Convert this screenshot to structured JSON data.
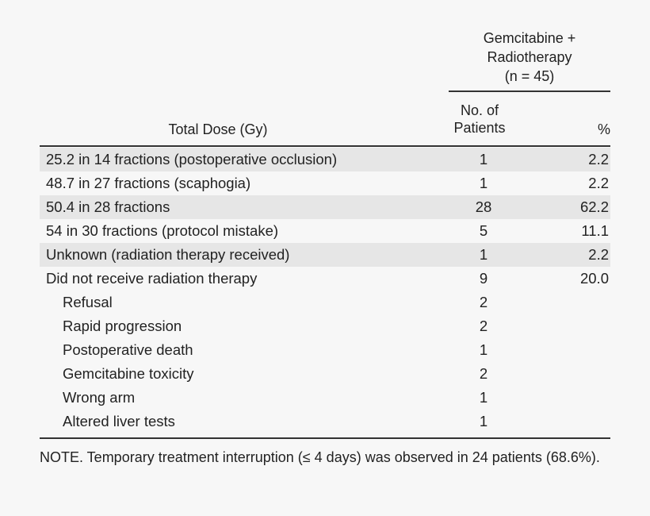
{
  "header": {
    "group_line1": "Gemcitabine +",
    "group_line2": "Radiotherapy",
    "group_line3": "(n = 45)",
    "col_total_dose": "Total Dose (Gy)",
    "col_patients_line1": "No. of",
    "col_patients_line2": "Patients",
    "col_percent": "%"
  },
  "rows": [
    {
      "label": "25.2 in 14 fractions (postoperative occlusion)",
      "n": "1",
      "pct": "2.2"
    },
    {
      "label": "48.7 in 27 fractions (scaphogia)",
      "n": "1",
      "pct": "2.2"
    },
    {
      "label": "50.4 in 28 fractions",
      "n": "28",
      "pct": "62.2"
    },
    {
      "label": "54 in 30 fractions (protocol mistake)",
      "n": "5",
      "pct": "11.1"
    },
    {
      "label": "Unknown (radiation therapy received)",
      "n": "1",
      "pct": "2.2"
    },
    {
      "label": "Did not receive radiation therapy",
      "n": "9",
      "pct": "20.0"
    },
    {
      "label": "Refusal",
      "n": "2",
      "pct": ""
    },
    {
      "label": "Rapid progression",
      "n": "2",
      "pct": ""
    },
    {
      "label": "Postoperative death",
      "n": "1",
      "pct": ""
    },
    {
      "label": "Gemcitabine toxicity",
      "n": "2",
      "pct": ""
    },
    {
      "label": "Wrong arm",
      "n": "1",
      "pct": ""
    },
    {
      "label": "Altered liver tests",
      "n": "1",
      "pct": ""
    }
  ],
  "note": "NOTE. Temporary treatment interruption (≤ 4 days) was observed in 24 patients (68.6%)."
}
